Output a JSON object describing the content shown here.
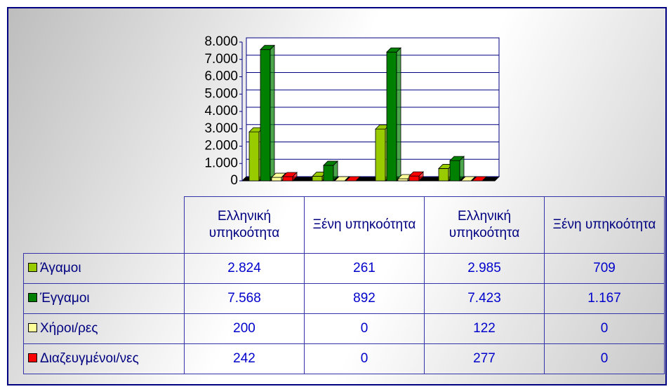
{
  "chart_data": {
    "type": "bar",
    "categories": [
      "Ελληνική υπηκοότητα",
      "Ξένη υπηκοότητα",
      "Ελληνική υπηκοότητα",
      "Ξένη υπηκοότητα"
    ],
    "series": [
      {
        "name": "Άγαμοι",
        "color": "#99cc00",
        "values": [
          2824,
          261,
          2985,
          709
        ],
        "value_labels": [
          "2.824",
          "261",
          "2.985",
          "709"
        ]
      },
      {
        "name": "Έγγαμοι",
        "color": "#008000",
        "values": [
          7568,
          892,
          7423,
          1167
        ],
        "value_labels": [
          "7.568",
          "892",
          "7.423",
          "1.167"
        ]
      },
      {
        "name": "Χήροι/ρες",
        "color": "#ffff99",
        "values": [
          200,
          0,
          122,
          0
        ],
        "value_labels": [
          "200",
          "0",
          "122",
          "0"
        ]
      },
      {
        "name": "Διαζευγμένοι/νες",
        "color": "#ff0000",
        "values": [
          242,
          0,
          277,
          0
        ],
        "value_labels": [
          "242",
          "0",
          "277",
          "0"
        ]
      }
    ],
    "ylim": [
      0,
      8000
    ],
    "yticks": [
      0,
      {
        "value": 1000,
        "label": "1.000"
      },
      {
        "value": 2000,
        "label": "2.000"
      },
      {
        "value": 3000,
        "label": "3.000"
      },
      {
        "value": 4000,
        "label": "4.000"
      },
      {
        "value": 5000,
        "label": "5.000"
      },
      {
        "value": 6000,
        "label": "6.000"
      },
      {
        "value": 7000,
        "label": "7.000"
      },
      {
        "value": 8000,
        "label": "8.000"
      }
    ],
    "grid": true
  }
}
